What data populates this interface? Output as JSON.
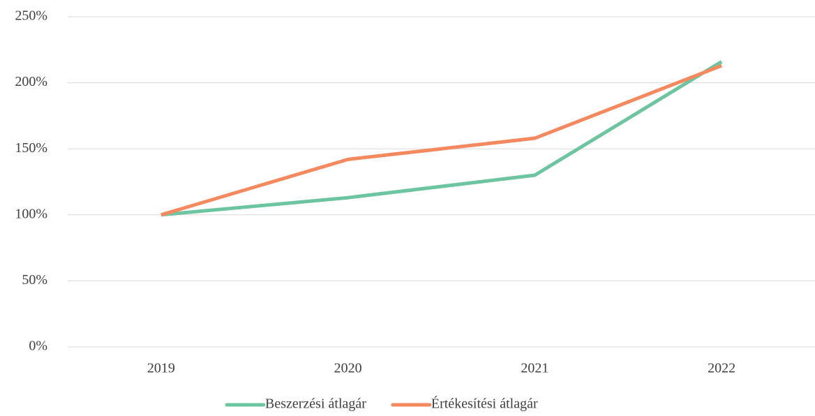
{
  "chart_data": {
    "type": "line",
    "categories": [
      "2019",
      "2020",
      "2021",
      "2022"
    ],
    "series": [
      {
        "name": "Beszerzési átlagár",
        "color": "#6cc4a0",
        "values": [
          100,
          113,
          130,
          216
        ]
      },
      {
        "name": "Értékesítési átlagár",
        "color": "#f4895f",
        "values": [
          100,
          142,
          158,
          213
        ]
      }
    ],
    "ylim": [
      0,
      250
    ],
    "yticks": [
      {
        "value": 0,
        "label": "0%"
      },
      {
        "value": 50,
        "label": "50%"
      },
      {
        "value": 100,
        "label": "100%"
      },
      {
        "value": 150,
        "label": "150%"
      },
      {
        "value": 200,
        "label": "200%"
      },
      {
        "value": 250,
        "label": "250%"
      }
    ],
    "grid": true,
    "legend": "bottom"
  }
}
